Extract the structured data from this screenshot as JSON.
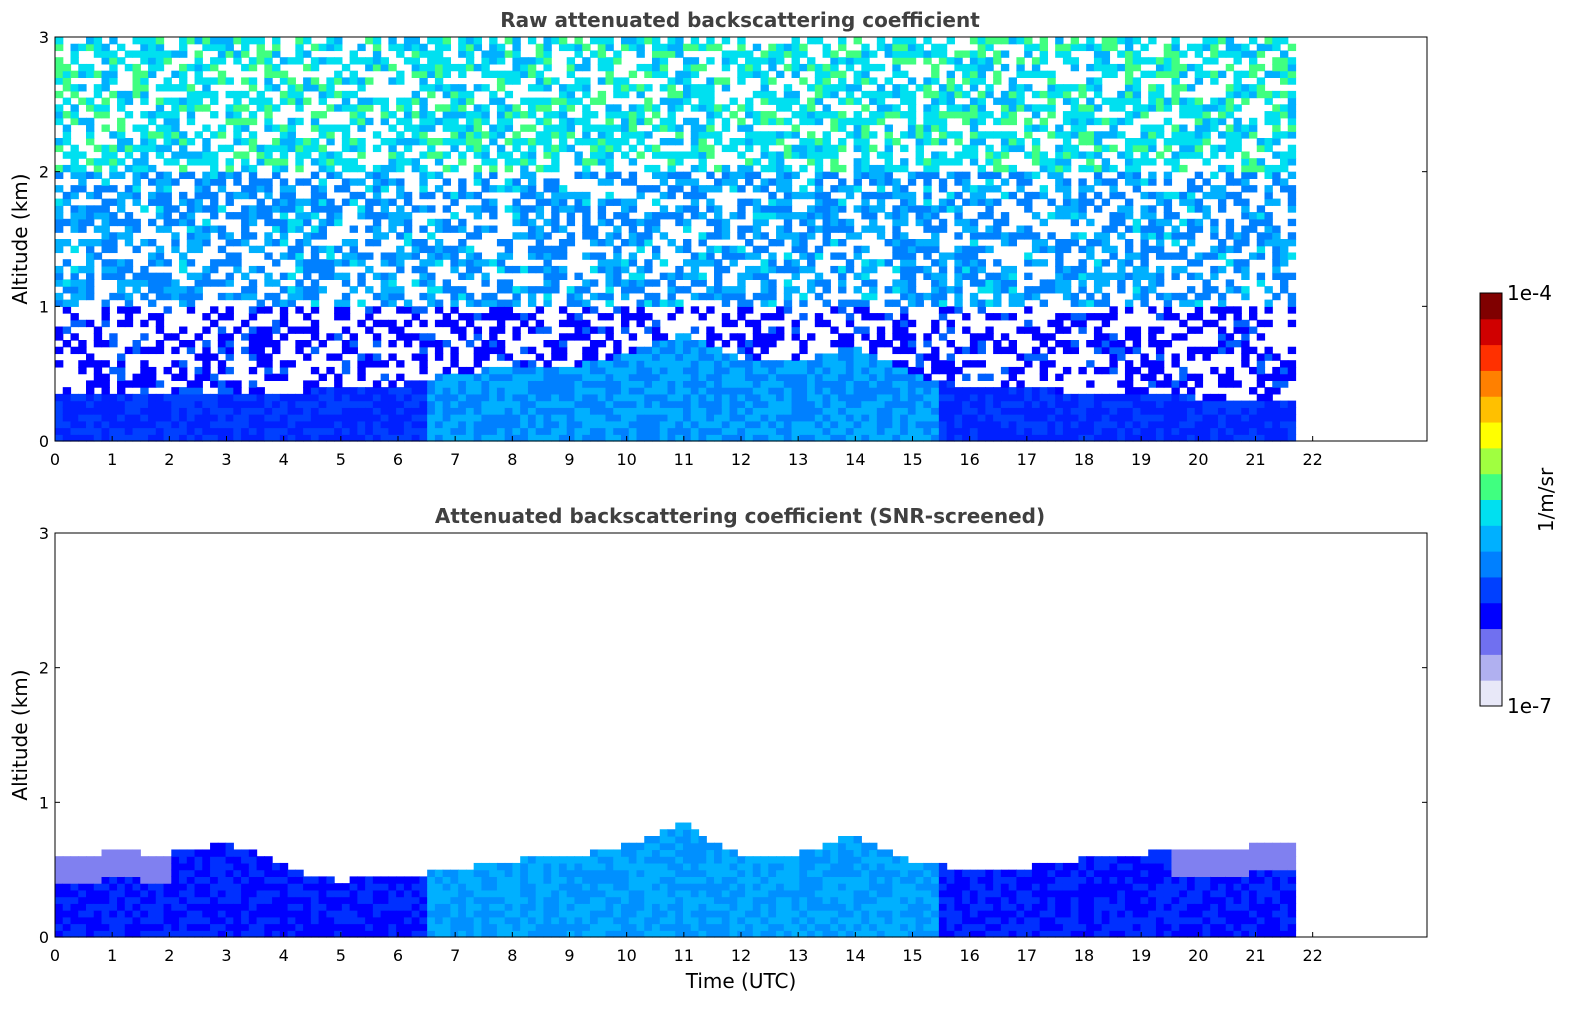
{
  "chart_data": [
    {
      "type": "heatmap",
      "title": "Raw attenuated backscattering coefficient",
      "xlabel": "",
      "ylabel": "Altitude (km)",
      "xlim": [
        0,
        24
      ],
      "ylim": [
        0,
        3
      ],
      "xticks": [
        "0",
        "1",
        "2",
        "3",
        "4",
        "5",
        "6",
        "7",
        "8",
        "9",
        "10",
        "11",
        "12",
        "13",
        "14",
        "15",
        "16",
        "17",
        "18",
        "19",
        "20",
        "21",
        "22"
      ],
      "yticks": [
        "0",
        "1",
        "2",
        "3"
      ],
      "data_time_range": [
        0,
        21.7
      ],
      "boundary_layer_top_km": {
        "time": [
          0,
          1,
          2,
          3,
          4,
          5,
          6,
          7,
          8,
          9,
          10,
          11,
          12,
          13,
          14,
          15,
          16,
          17,
          18,
          19,
          20,
          21,
          21.7
        ],
        "height": [
          0.35,
          0.35,
          0.35,
          0.36,
          0.37,
          0.38,
          0.42,
          0.5,
          0.55,
          0.55,
          0.65,
          0.8,
          0.6,
          0.6,
          0.7,
          0.5,
          0.4,
          0.38,
          0.37,
          0.35,
          0.32,
          0.3,
          0.3
        ]
      },
      "noise_description": "noisy speckle increasing with altitude"
    },
    {
      "type": "heatmap",
      "title": "Attenuated backscattering coefficient (SNR-screened)",
      "xlabel": "Time (UTC)",
      "ylabel": "Altitude (km)",
      "xlim": [
        0,
        24
      ],
      "ylim": [
        0,
        3
      ],
      "xticks": [
        "0",
        "1",
        "2",
        "3",
        "4",
        "5",
        "6",
        "7",
        "8",
        "9",
        "10",
        "11",
        "12",
        "13",
        "14",
        "15",
        "16",
        "17",
        "18",
        "19",
        "20",
        "21",
        "22"
      ],
      "yticks": [
        "0",
        "1",
        "2",
        "3"
      ],
      "data_time_range": [
        0,
        21.7
      ],
      "layer_top_km": {
        "time": [
          0,
          1,
          2,
          3,
          4,
          4.5,
          5,
          6,
          7,
          8,
          9,
          10,
          10.5,
          11,
          11.5,
          12,
          13,
          14,
          14.5,
          15,
          16,
          17,
          18,
          19,
          20,
          21,
          21.7
        ],
        "height": [
          0.6,
          0.63,
          0.62,
          0.7,
          0.55,
          0.45,
          0.42,
          0.45,
          0.5,
          0.57,
          0.6,
          0.68,
          0.75,
          0.85,
          0.7,
          0.6,
          0.62,
          0.76,
          0.65,
          0.57,
          0.5,
          0.52,
          0.58,
          0.62,
          0.65,
          0.68,
          0.7
        ]
      }
    }
  ],
  "colorbar": {
    "max_label": "1e-4",
    "min_label": "1e-7",
    "unit_label": "1/m/sr",
    "colors": [
      "#e8e8f8",
      "#b0b0f0",
      "#7070f0",
      "#0000ff",
      "#0040ff",
      "#0080ff",
      "#00b0ff",
      "#00e0f0",
      "#40ff80",
      "#a0ff40",
      "#ffff00",
      "#ffc000",
      "#ff8000",
      "#ff3000",
      "#d00000",
      "#800000"
    ]
  }
}
